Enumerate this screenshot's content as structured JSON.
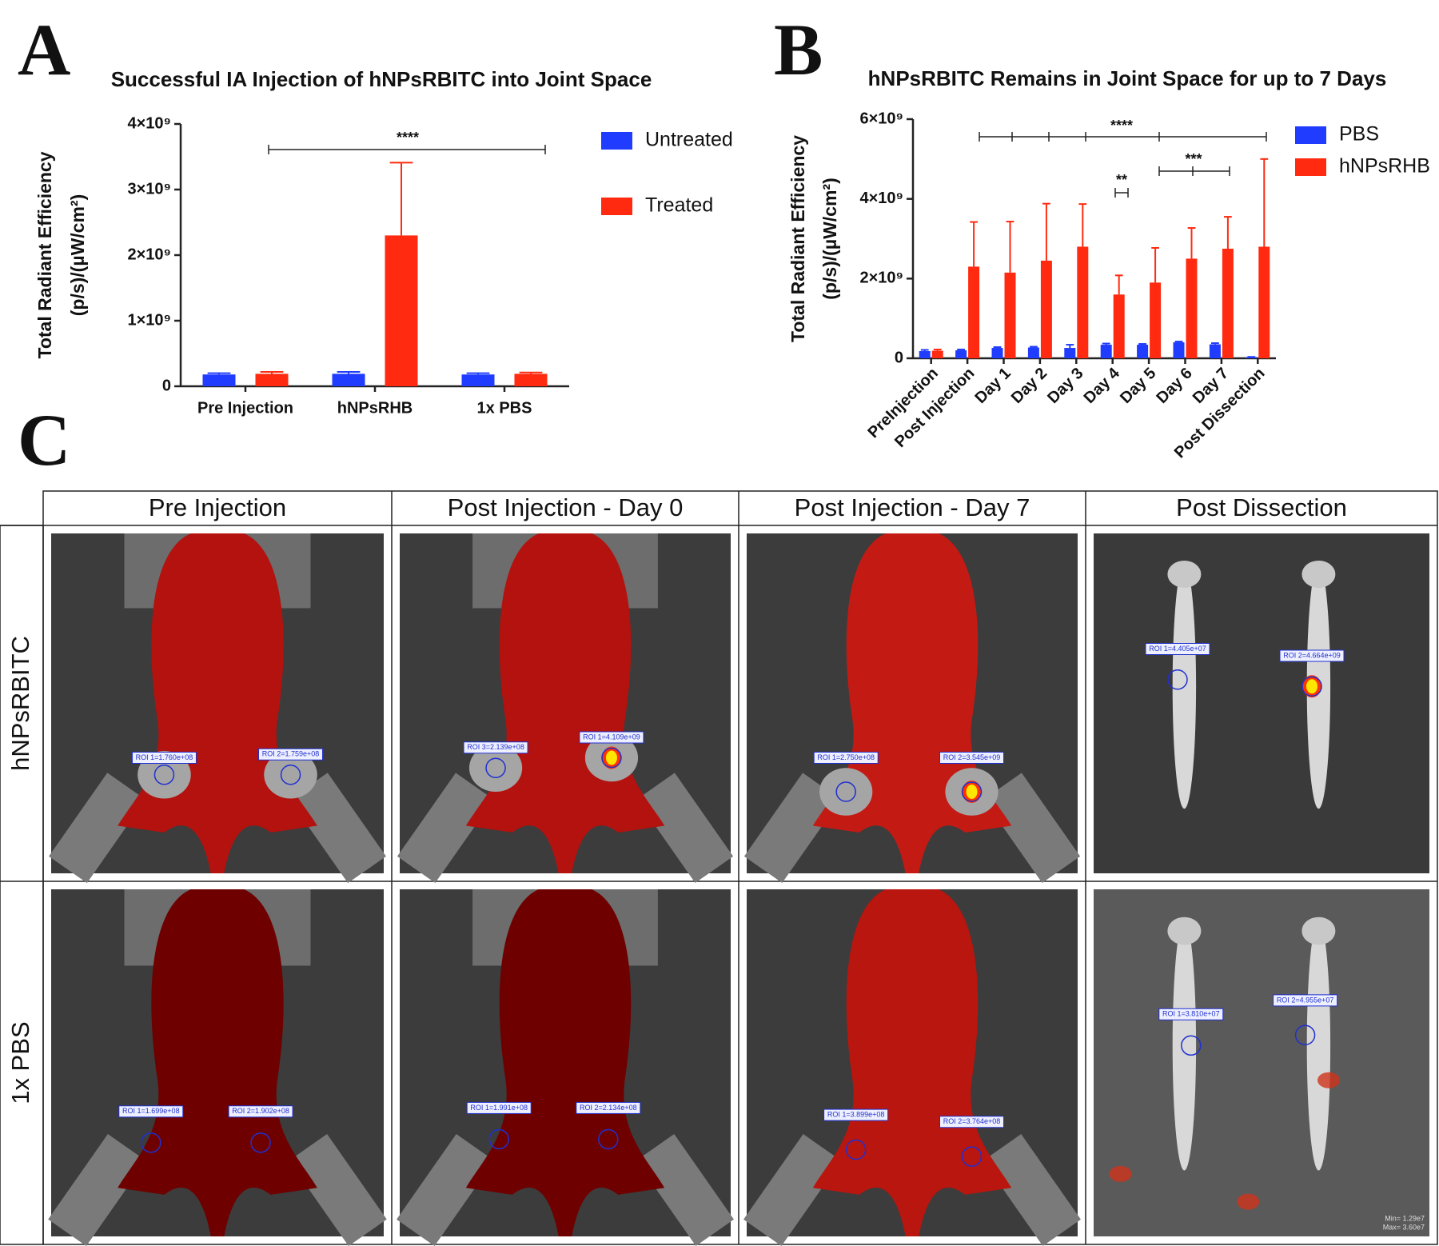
{
  "chart_data": [
    {
      "type": "bar",
      "panel": "A",
      "title": "Successful IA Injection of hNPsRBITC into Joint Space",
      "ylabel": [
        "Total Radiant Efficiency",
        "(p/s)/(µW/cm²)"
      ],
      "categories": [
        "Pre Injection",
        "hNPsRHB",
        "1x PBS"
      ],
      "series": [
        {
          "name": "Untreated",
          "color": "#1f3cff",
          "values": [
            180000000,
            190000000,
            180000000
          ],
          "errors": [
            20000000,
            30000000,
            20000000
          ]
        },
        {
          "name": "Treated",
          "color": "#ff2a10",
          "values": [
            190000000,
            2300000000,
            190000000
          ],
          "errors": [
            30000000,
            1110000000,
            20000000
          ]
        }
      ],
      "ylim": [
        0,
        4000000000
      ],
      "yticks": [
        0,
        {
          "value": 1000000000,
          "label": "1×10⁹"
        },
        {
          "value": 2000000000,
          "label": "2×10⁹"
        },
        {
          "value": 3000000000,
          "label": "3×10⁹"
        },
        {
          "value": 4000000000,
          "label": "4×10⁹"
        }
      ],
      "annotations": [
        "****"
      ]
    },
    {
      "type": "bar",
      "panel": "B",
      "title": "hNPsRBITC Remains in Joint Space for up to 7 Days",
      "ylabel": [
        "Total Radiant Efficiency",
        "(p/s)/(µW/cm²)"
      ],
      "categories": [
        "PreInjection",
        "Post Injection",
        "Day 1",
        "Day 2",
        "Day 3",
        "Day 4",
        "Day 5",
        "Day 6",
        "Day 7",
        "Post Dissection"
      ],
      "series": [
        {
          "name": "PBS",
          "color": "#1f3cff",
          "values": [
            180000000,
            200000000,
            260000000,
            270000000,
            260000000,
            340000000,
            340000000,
            400000000,
            350000000,
            30000000
          ],
          "errors": [
            30000000,
            20000000,
            20000000,
            20000000,
            80000000,
            30000000,
            20000000,
            20000000,
            30000000,
            5000000
          ]
        },
        {
          "name": "hNPsRHB",
          "color": "#ff2a10",
          "values": [
            190000000,
            2300000000,
            2150000000,
            2450000000,
            2800000000,
            1600000000,
            1900000000,
            2500000000,
            2750000000,
            2800000000
          ],
          "errors": [
            30000000,
            1120000000,
            1280000000,
            1430000000,
            1070000000,
            480000000,
            870000000,
            770000000,
            800000000,
            2200000000
          ]
        }
      ],
      "ylim": [
        0,
        6000000000
      ],
      "yticks": [
        0,
        {
          "value": 2000000000,
          "label": "2×10⁹"
        },
        {
          "value": 4000000000,
          "label": "4×10⁹"
        },
        {
          "value": 6000000000,
          "label": "6×10⁹"
        }
      ],
      "annotations": [
        "****",
        "**",
        "***"
      ]
    }
  ],
  "panel_c": {
    "panel": "C",
    "columns": [
      "Pre Injection",
      "Post Injection - Day 0",
      "Post Injection - Day 7",
      "Post Dissection"
    ],
    "rows": [
      "hNPsRBITC",
      "1x PBS"
    ],
    "images": [
      {
        "rois": [
          "ROI 1=1.760e+08",
          "ROI 2=1.759e+08"
        ]
      },
      {
        "rois": [
          "ROI 3=2.139e+08",
          "ROI 1=4.109e+09"
        ]
      },
      {
        "rois": [
          "ROI 1=2.750e+08",
          "ROI 2=3.545e+09"
        ]
      },
      {
        "rois": [
          "ROI 1=4.405e+07",
          "ROI 2=4.664e+09"
        ]
      },
      {
        "rois": [
          "ROI 1=1.699e+08",
          "ROI 2=1.902e+08"
        ]
      },
      {
        "rois": [
          "ROI 1=1.991e+08",
          "ROI 2=2.134e+08"
        ]
      },
      {
        "rois": [
          "ROI 1=3.899e+08",
          "ROI 2=3.764e+08"
        ]
      },
      {
        "rois": [
          "ROI 1=3.810e+07",
          "ROI 2=4.955e+07"
        ],
        "scale": [
          "Min= 1.29e7",
          "Max= 3.60e7"
        ]
      }
    ]
  }
}
